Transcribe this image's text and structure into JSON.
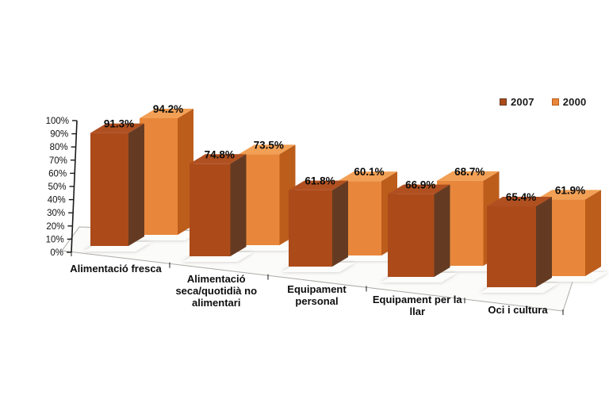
{
  "chart_data": {
    "type": "bar",
    "style": "3d-column-perspective",
    "title": "",
    "categories": [
      "Alimentació fresca",
      "Alimentació seca/quotidià no alimentari",
      "Equipament personal",
      "Equipament per la llar",
      "Oci i cultura"
    ],
    "category_label_lines": [
      [
        "Alimentació fresca"
      ],
      [
        "Alimentació",
        "seca/quotidià no",
        "alimentari"
      ],
      [
        "Equipament",
        "personal"
      ],
      [
        "Equipament per la",
        "llar"
      ],
      [
        "Oci i cultura"
      ]
    ],
    "series": [
      {
        "name": "2007",
        "values": [
          91.3,
          74.8,
          61.8,
          66.9,
          65.4
        ],
        "color_front": "#AC4A1A",
        "color_top": "#B05020",
        "color_side": "#643B22"
      },
      {
        "name": "2000",
        "values": [
          94.2,
          73.5,
          60.1,
          68.7,
          61.9
        ],
        "color_front": "#E8873B",
        "color_top": "#F2A055",
        "color_side": "#BC5D1B"
      }
    ],
    "value_suffix": "%",
    "y_axis": {
      "min": 0,
      "max": 100,
      "tick_step": 10,
      "ticks": [
        "100%",
        "90%",
        "80%",
        "70%",
        "60%",
        "50%",
        "40%",
        "30%",
        "20%",
        "10%",
        "0%"
      ]
    },
    "legend": {
      "position": "top-right",
      "items": [
        "2007",
        "2000"
      ]
    },
    "grid": false,
    "colors": {
      "axis": "#1a1a1a",
      "floor_fill": "#FBFBFA",
      "floor_stroke": "#ADAAA6",
      "pad_shadow": "#C8C4C0",
      "pad_fill": "#FCFCFB",
      "label_text": "#0a0a0a"
    }
  }
}
